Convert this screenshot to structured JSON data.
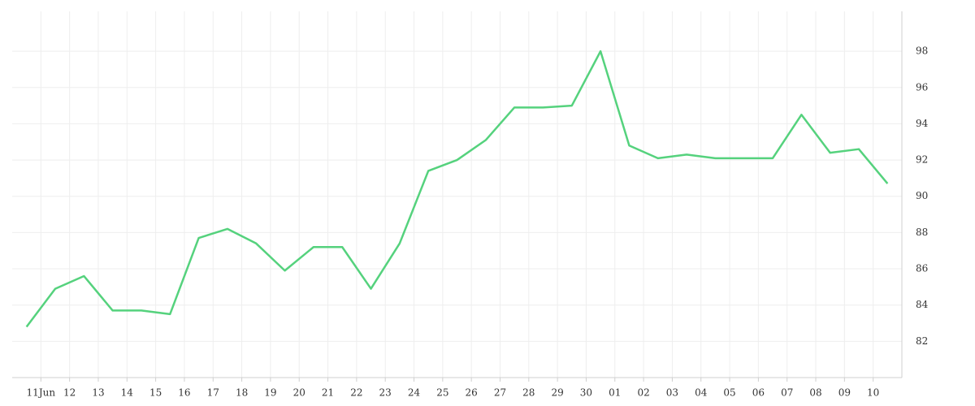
{
  "chart_data": {
    "type": "line",
    "x": [
      0,
      1,
      2,
      3,
      4,
      5,
      6,
      7,
      8,
      9,
      10,
      11,
      12,
      13,
      14,
      15,
      16,
      17,
      18,
      19,
      20,
      21,
      22,
      23,
      24,
      25,
      26,
      27,
      28,
      29,
      30
    ],
    "series": [
      {
        "color": "#55d27d",
        "values": [
          82.8,
          84.9,
          85.6,
          83.7,
          83.7,
          83.5,
          87.7,
          88.2,
          87.4,
          85.9,
          87.2,
          87.2,
          84.9,
          87.4,
          91.4,
          92.0,
          93.1,
          94.9,
          94.9,
          95.0,
          98.0,
          92.8,
          92.1,
          92.3,
          92.1,
          92.1,
          92.1,
          94.5,
          92.4,
          92.6,
          90.7
        ]
      }
    ],
    "xlim": [
      -0.5,
      30.5
    ],
    "xticks": [
      {
        "value": 0.5,
        "label": "11Jun"
      },
      {
        "value": 1.5,
        "label": "12"
      },
      {
        "value": 2.5,
        "label": "13"
      },
      {
        "value": 3.5,
        "label": "14"
      },
      {
        "value": 4.5,
        "label": "15"
      },
      {
        "value": 5.5,
        "label": "16"
      },
      {
        "value": 6.5,
        "label": "17"
      },
      {
        "value": 7.5,
        "label": "18"
      },
      {
        "value": 8.5,
        "label": "19"
      },
      {
        "value": 9.5,
        "label": "20"
      },
      {
        "value": 10.5,
        "label": "21"
      },
      {
        "value": 11.5,
        "label": "22"
      },
      {
        "value": 12.5,
        "label": "23"
      },
      {
        "value": 13.5,
        "label": "24"
      },
      {
        "value": 14.5,
        "label": "25"
      },
      {
        "value": 15.5,
        "label": "26"
      },
      {
        "value": 16.5,
        "label": "27"
      },
      {
        "value": 17.5,
        "label": "28"
      },
      {
        "value": 18.5,
        "label": "29"
      },
      {
        "value": 19.5,
        "label": "30"
      },
      {
        "value": 20.5,
        "label": "01"
      },
      {
        "value": 21.5,
        "label": "02"
      },
      {
        "value": 22.5,
        "label": "03"
      },
      {
        "value": 23.5,
        "label": "04"
      },
      {
        "value": 24.5,
        "label": "05"
      },
      {
        "value": 25.5,
        "label": "06"
      },
      {
        "value": 26.5,
        "label": "07"
      },
      {
        "value": 27.5,
        "label": "08"
      },
      {
        "value": 28.5,
        "label": "09"
      },
      {
        "value": 29.5,
        "label": "10"
      }
    ],
    "ylim": [
      80,
      100.2
    ],
    "yticks": [
      82,
      84,
      86,
      88,
      90,
      92,
      94,
      96,
      98
    ],
    "grid": true
  }
}
